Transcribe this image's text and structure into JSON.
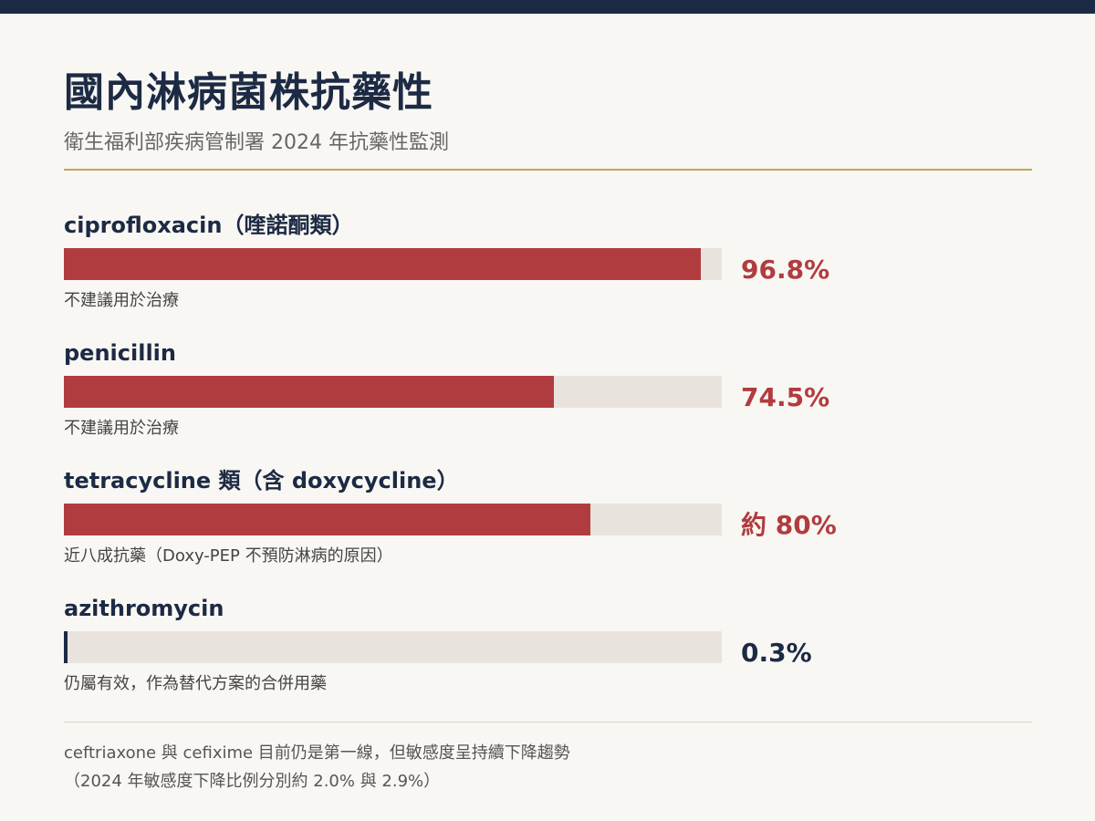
{
  "title": "國內淋病菌株抗藥性",
  "subtitle": "衛生福利部疾病管制署 2024 年抗藥性監測",
  "colors": {
    "navy": "#1c2a44",
    "red": "#b13c3f",
    "track": "#e8e3dc",
    "gold_rule": "#c4a55e",
    "background": "#f9f7f3"
  },
  "chart_data": {
    "type": "bar",
    "orientation": "horizontal",
    "xlim": [
      0,
      100
    ],
    "unit": "%",
    "categories": [
      "ciprofloxacin（喹諾酮類）",
      "penicillin",
      "tetracycline 類（含 doxycycline）",
      "azithromycin"
    ],
    "values": [
      96.8,
      74.5,
      80,
      0.3
    ],
    "value_labels": [
      "96.8%",
      "74.5%",
      "約 80%",
      "0.3%"
    ],
    "notes": [
      "不建議用於治療",
      "不建議用於治療",
      "近八成抗藥（Doxy-PEP 不預防淋病的原因）",
      "仍屬有效，作為替代方案的合併用藥"
    ],
    "bar_colors": [
      "#b13c3f",
      "#b13c3f",
      "#b13c3f",
      "#1c2a44"
    ]
  },
  "footnote": {
    "line1": "ceftriaxone 與 cefixime 目前仍是第一線，但敏感度呈持續下降趨勢",
    "line2": "（2024 年敏感度下降比例分別約 2.0% 與 2.9%）"
  }
}
